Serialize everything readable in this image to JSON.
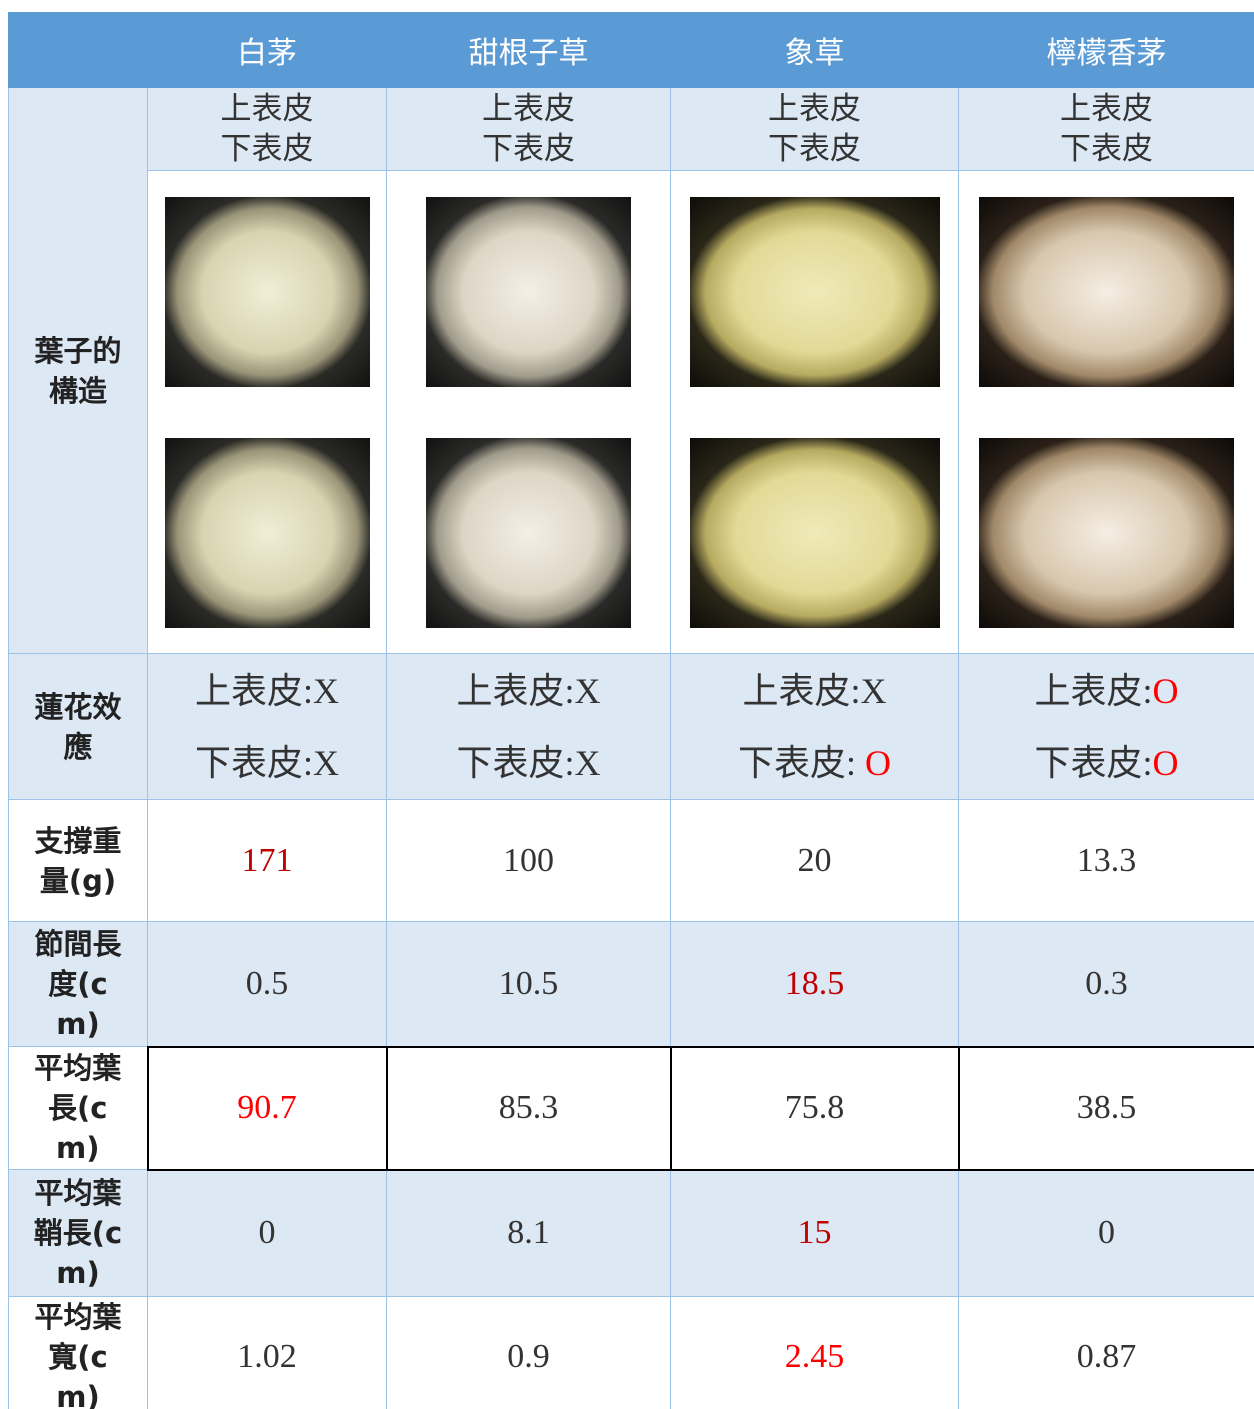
{
  "header": {
    "columns": [
      "白茅",
      "甜根子草",
      "象草",
      "檸檬香茅"
    ]
  },
  "structure": {
    "label": "葉子的構造",
    "surfaces": [
      [
        "上表皮",
        "下表皮"
      ],
      [
        "上表皮",
        "下表皮"
      ],
      [
        "上表皮",
        "下表皮"
      ],
      [
        "上表皮",
        "下表皮"
      ]
    ]
  },
  "lotus_effect": {
    "label": "蓮花效應",
    "cells": [
      [
        {
          "surface": "上表皮:",
          "result": "X",
          "color": "#333333"
        },
        {
          "surface": "下表皮:",
          "result": "X",
          "color": "#333333"
        }
      ],
      [
        {
          "surface": "上表皮:",
          "result": "X",
          "color": "#333333"
        },
        {
          "surface": "下表皮:",
          "result": "X",
          "color": "#333333"
        }
      ],
      [
        {
          "surface": "上表皮:",
          "result": "X",
          "color": "#333333"
        },
        {
          "surface": "下表皮: ",
          "result": "O",
          "color": "#ff0000"
        }
      ],
      [
        {
          "surface": "上表皮:",
          "result": "O",
          "color": "#ff0000"
        },
        {
          "surface": "下表皮:",
          "result": "O",
          "color": "#ff0000"
        }
      ]
    ]
  },
  "measurements": [
    {
      "label": "支撐重量(g)",
      "values": [
        171,
        100,
        20,
        13.3
      ],
      "colors": [
        "#c00000",
        "#333333",
        "#333333",
        "#333333"
      ]
    },
    {
      "label": "節間長度(cm)",
      "values": [
        0.5,
        10.5,
        18.5,
        0.3
      ],
      "colors": [
        "#333333",
        "#333333",
        "#c00000",
        "#333333"
      ]
    },
    {
      "label": "平均葉長(cm)",
      "values": [
        90.7,
        85.3,
        75.8,
        38.5
      ],
      "colors": [
        "#ff0000",
        "#333333",
        "#333333",
        "#333333"
      ]
    },
    {
      "label": "平均葉鞘長(cm)",
      "values": [
        0,
        8.1,
        15,
        0
      ],
      "colors": [
        "#333333",
        "#333333",
        "#c00000",
        "#333333"
      ]
    },
    {
      "label": "平均葉寬(cm)",
      "values": [
        1.02,
        0.9,
        2.45,
        0.87
      ],
      "colors": [
        "#333333",
        "#333333",
        "#ff0000",
        "#333333"
      ]
    }
  ]
}
